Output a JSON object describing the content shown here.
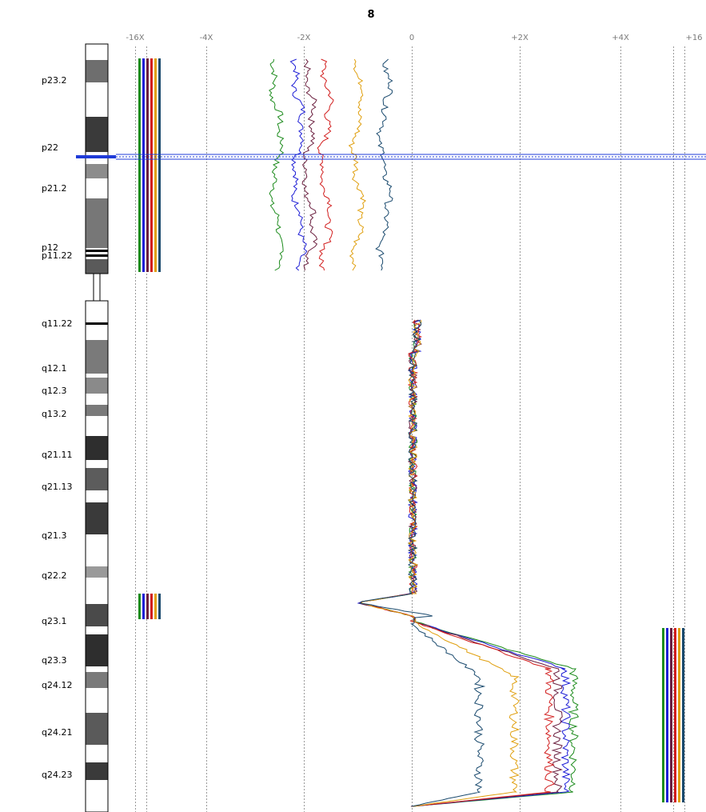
{
  "chart_data": {
    "type": "line",
    "title": "8",
    "x_tick_labels": [
      "-16X",
      "-4X",
      "-2X",
      "0",
      "+2X",
      "+4X",
      "+16"
    ],
    "y_band_labels": [
      "p23.2",
      "p22",
      "p21.2",
      "p12",
      "p11.22",
      "q11.22",
      "q12.1",
      "q12.3",
      "q13.2",
      "q21.11",
      "q21.13",
      "q21.3",
      "q22.2",
      "q23.1",
      "q23.3",
      "q24.12",
      "q24.21",
      "q24.23"
    ],
    "series_colors": [
      "#1e8c1e",
      "#1f1fd6",
      "#6b1f3f",
      "#d21e1e",
      "#e0a010",
      "#1a4a6e"
    ],
    "p_arm_offsets": [
      -2.5,
      -2.1,
      -1.9,
      -1.6,
      -1.0,
      -0.5
    ],
    "q_arm_mid_offsets": [
      3.0,
      2.85,
      2.7,
      2.55,
      1.9,
      1.25
    ],
    "q23_dip": -1.0,
    "selected_band": "p22",
    "grid": true
  }
}
